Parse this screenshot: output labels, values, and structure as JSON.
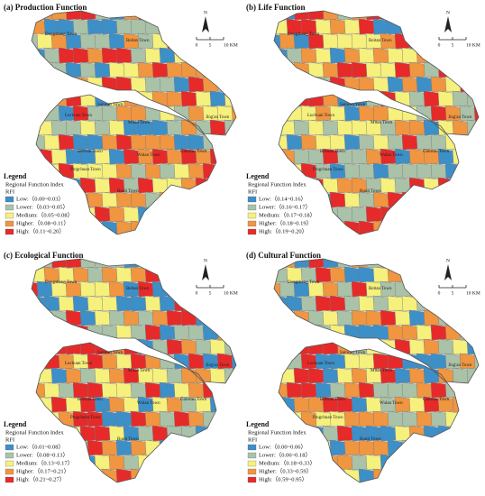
{
  "panels": [
    {
      "title": "(a) Production Function",
      "items": [
        "Low:（0.00~0.03）",
        "Lower:（0.03~0.05）",
        "Medium:（0.05~0.08）",
        "Higher:（0.08~0.11）",
        "High:（0.11~0.20）"
      ]
    },
    {
      "title": "(b) Life Function",
      "items": [
        "Low:（0.14~0.16）",
        "Lower:（0.16~0.17）",
        "Medium:（0.17~0.18）",
        "Higher:（0.18~0.19）",
        "High:（0.19~0.20）"
      ]
    },
    {
      "title": "(c) Ecological Function",
      "items": [
        "Low:（0.01~0.08）",
        "Lower:（0.08~0.13）",
        "Medium:（0.13~0.17）",
        "Higher:（0.17~0.21）",
        "High:（0.21~0.27）"
      ]
    },
    {
      "title": "(d) Cultural Function",
      "items": [
        "Low:（0.00~0.06）",
        "Lower:（0.06~0.18）",
        "Medium:（0.18~0.33）",
        "Higher:（0.33~0.59）",
        "High:（0.59~0.95）"
      ]
    }
  ],
  "legend_title": "Legend",
  "legend_subtitle": "Regional Function Index",
  "legend_abbr": "RFI",
  "legend_colors": [
    "#3d8fc8",
    "#a9c2a8",
    "#f6f07c",
    "#f09540",
    "#e62a2a"
  ],
  "north": "N",
  "scale": [
    "0",
    "5",
    "10 KM"
  ],
  "towns": [
    "Dongsheng Town",
    "Beitan Town",
    "Jing'an Town",
    "Sanwan Town",
    "Luchuan Town",
    "Mitan Town",
    "Beiwan Town",
    "Wulan Town",
    "Gaowan Town",
    "Pingchuan Town",
    "Ruoli Town"
  ]
}
